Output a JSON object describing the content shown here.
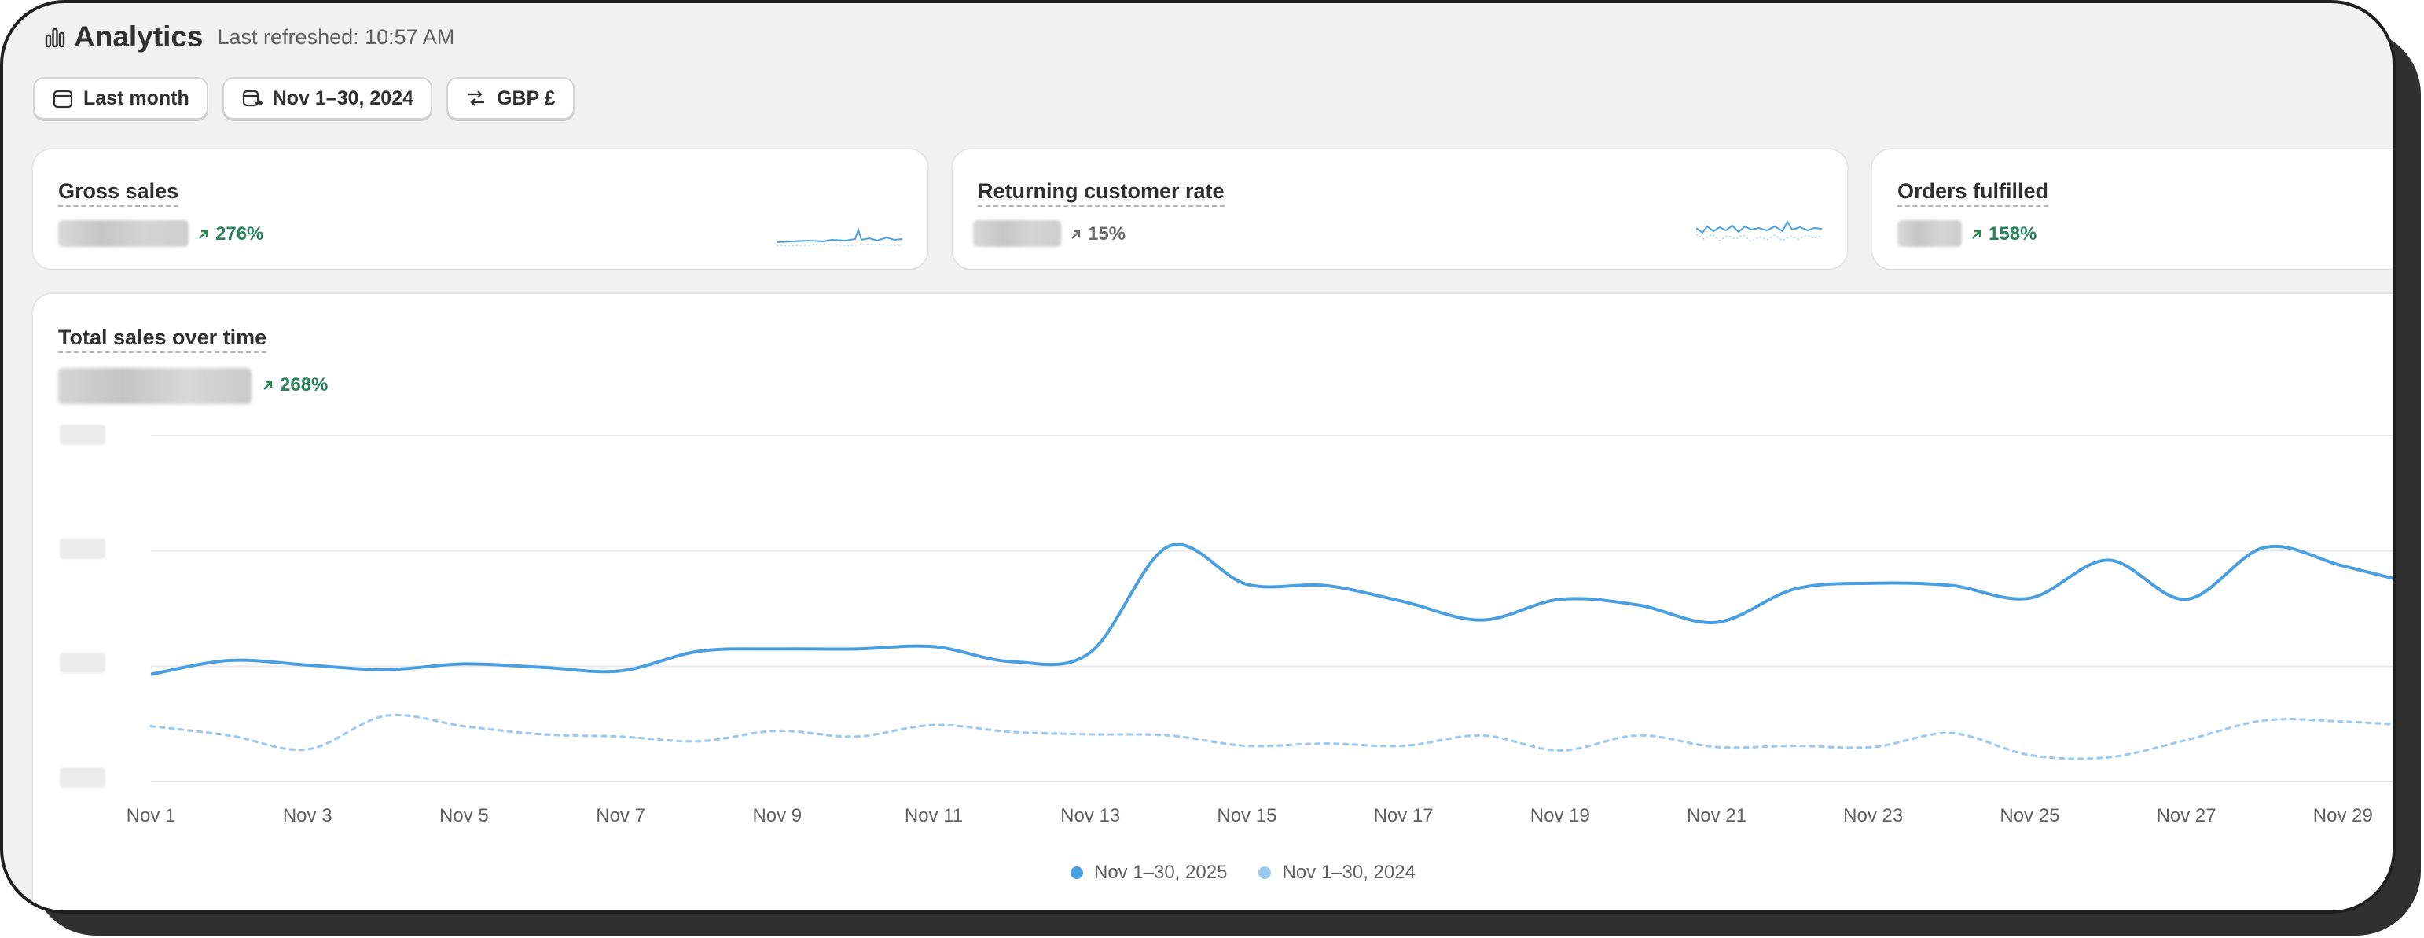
{
  "header": {
    "title": "Analytics",
    "refreshed": "Last refreshed: 10:57 AM",
    "icon": "bar-chart-icon"
  },
  "filters": {
    "period": "Last month",
    "comparison": "Nov 1–30, 2024",
    "currency": "GBP £"
  },
  "metrics": [
    {
      "title": "Gross sales",
      "delta": "276%",
      "direction": "up"
    },
    {
      "title": "Returning customer rate",
      "delta": "15%",
      "direction": "neutral"
    },
    {
      "title": "Orders fulfilled",
      "delta": "158%",
      "direction": "up"
    }
  ],
  "chart": {
    "title": "Total sales over time",
    "delta": "268%",
    "legend": [
      "Nov 1–30, 2025",
      "Nov 1–30, 2024"
    ]
  },
  "colors": {
    "current": "#4a9fe0",
    "previous": "#9ccbef",
    "positive": "#29845a"
  },
  "chart_data": {
    "type": "line",
    "title": "Total sales over time",
    "x": [
      "Nov 1",
      "Nov 2",
      "Nov 3",
      "Nov 4",
      "Nov 5",
      "Nov 6",
      "Nov 7",
      "Nov 8",
      "Nov 9",
      "Nov 10",
      "Nov 11",
      "Nov 12",
      "Nov 13",
      "Nov 14",
      "Nov 15",
      "Nov 16",
      "Nov 17",
      "Nov 18",
      "Nov 19",
      "Nov 20",
      "Nov 21",
      "Nov 22",
      "Nov 23",
      "Nov 24",
      "Nov 25",
      "Nov 26",
      "Nov 27",
      "Nov 28",
      "Nov 29",
      "Nov 30"
    ],
    "xticks": [
      "Nov 1",
      "Nov 3",
      "Nov 5",
      "Nov 7",
      "Nov 9",
      "Nov 11",
      "Nov 13",
      "Nov 15",
      "Nov 17",
      "Nov 19",
      "Nov 21",
      "Nov 23",
      "Nov 25",
      "Nov 27",
      "Nov 29"
    ],
    "ylim": [
      0,
      3
    ],
    "grid": true,
    "legend_position": "bottom-center",
    "series": [
      {
        "name": "Nov 1–30, 2025",
        "style": "solid",
        "values": [
          0.93,
          1.05,
          1.01,
          0.97,
          1.02,
          0.99,
          0.96,
          1.13,
          1.15,
          1.15,
          1.17,
          1.04,
          1.12,
          2.04,
          1.71,
          1.7,
          1.56,
          1.4,
          1.58,
          1.53,
          1.38,
          1.67,
          1.72,
          1.7,
          1.59,
          1.92,
          1.58,
          2.03,
          1.87,
          1.7
        ]
      },
      {
        "name": "Nov 1–30, 2024",
        "style": "dotted",
        "values": [
          0.48,
          0.4,
          0.28,
          0.57,
          0.48,
          0.41,
          0.39,
          0.35,
          0.44,
          0.39,
          0.49,
          0.43,
          0.41,
          0.4,
          0.31,
          0.33,
          0.31,
          0.4,
          0.27,
          0.4,
          0.3,
          0.31,
          0.3,
          0.42,
          0.23,
          0.21,
          0.36,
          0.53,
          0.52,
          0.48
        ]
      }
    ]
  }
}
